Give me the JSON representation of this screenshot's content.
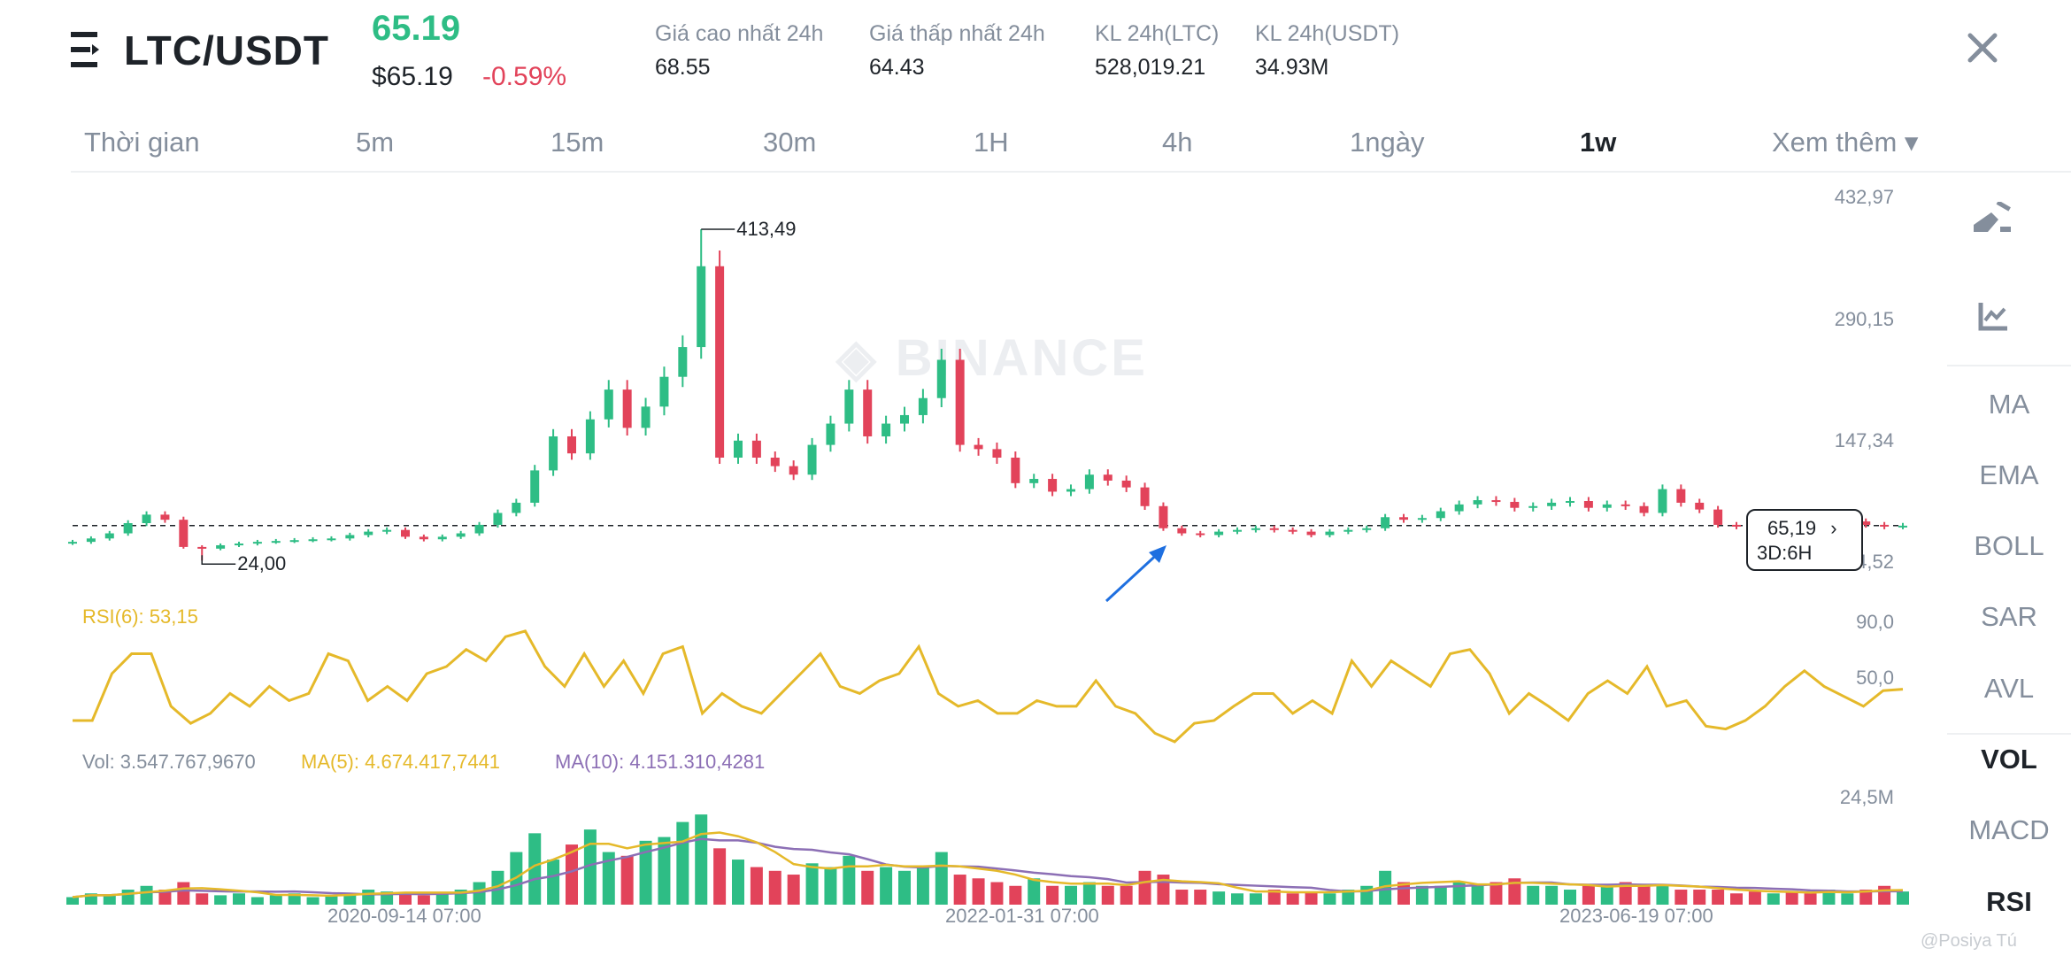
{
  "header": {
    "pair": "LTC/USDT",
    "last_price": "65.19",
    "usd_price": "$65.19",
    "change": "-0.59%",
    "stats": [
      {
        "label": "Giá cao nhất 24h",
        "value": "68.55"
      },
      {
        "label": "Giá thấp nhất 24h",
        "value": "64.43"
      },
      {
        "label": "KL 24h(LTC)",
        "value": "528,019.21"
      },
      {
        "label": "KL 24h(USDT)",
        "value": "34.93M"
      }
    ],
    "close_icon": "close-icon"
  },
  "tabs": [
    {
      "label": "Thời gian"
    },
    {
      "label": "5m"
    },
    {
      "label": "15m"
    },
    {
      "label": "30m"
    },
    {
      "label": "1H"
    },
    {
      "label": "4h"
    },
    {
      "label": "1ngày"
    },
    {
      "label": "1w",
      "active": true
    },
    {
      "label": "Xem thêm ▾"
    }
  ],
  "toolbar": {
    "items": [
      "MA",
      "EMA",
      "BOLL",
      "SAR",
      "AVL",
      "VOL",
      "MACD",
      "RSI"
    ],
    "active": [
      "VOL",
      "RSI"
    ],
    "icons": [
      "draw-icon",
      "indicator-chart-icon"
    ]
  },
  "watermark": "BINANCE",
  "credit": "@Posiya Tú",
  "colors": {
    "up": "#2ebd85",
    "down": "#e2435a",
    "rsi": "#e5b92a",
    "ma5": "#e5b92a",
    "ma10": "#8c6fb5",
    "arrow": "#1e6fe0"
  },
  "chart_data": {
    "type": "candlestick",
    "interval": "1w",
    "price_axis": {
      "ticks": [
        "432,97",
        "290,15",
        "147,34",
        "4,52"
      ],
      "range": [
        4.52,
        432.97
      ]
    },
    "rsi_axis": {
      "ticks": [
        "90,0",
        "50,0"
      ]
    },
    "vol_axis": {
      "ticks": [
        "24,5M"
      ]
    },
    "x_ticks": [
      "2020-09-14 07:00",
      "2022-01-31 07:00",
      "2023-06-19 07:00"
    ],
    "current_price": {
      "value": "65,19",
      "countdown": "3D:6H"
    },
    "max_label": "413,49",
    "max_value": 413.49,
    "min_label": "24,00",
    "min_value": 24.0,
    "closes": [
      46,
      50,
      56,
      68,
      78,
      72,
      40,
      38,
      42,
      44,
      46,
      47,
      48,
      49,
      50,
      54,
      58,
      60,
      52,
      49,
      52,
      56,
      66,
      80,
      92,
      130,
      170,
      150,
      190,
      225,
      180,
      205,
      240,
      275,
      370,
      145,
      165,
      145,
      135,
      125,
      160,
      185,
      225,
      170,
      185,
      195,
      215,
      260,
      160,
      155,
      145,
      115,
      120,
      105,
      108,
      125,
      118,
      110,
      88,
      62,
      56,
      54,
      58,
      60,
      62,
      60,
      58,
      54,
      58,
      60,
      62,
      75,
      72,
      74,
      82,
      90,
      95,
      93,
      86,
      88,
      92,
      94,
      86,
      90,
      88,
      80,
      108,
      92,
      84,
      66,
      64,
      62,
      70,
      66,
      64,
      66,
      70,
      66,
      64,
      65
    ],
    "rsi": {
      "label": "RSI(6): 53,15",
      "values": [
        31,
        31,
        64,
        78,
        78,
        41,
        29,
        36,
        50,
        41,
        55,
        45,
        50,
        78,
        73,
        45,
        55,
        45,
        64,
        69,
        81,
        73,
        90,
        94,
        69,
        55,
        78,
        55,
        73,
        50,
        78,
        83,
        36,
        50,
        41,
        36,
        50,
        64,
        78,
        55,
        50,
        59,
        64,
        83,
        50,
        41,
        45,
        36,
        36,
        45,
        41,
        41,
        59,
        41,
        36,
        22,
        16,
        29,
        31,
        41,
        50,
        50,
        36,
        45,
        36,
        73,
        55,
        73,
        64,
        55,
        78,
        81,
        64,
        36,
        50,
        41,
        31,
        50,
        59,
        50,
        69,
        41,
        45,
        27,
        25,
        31,
        41,
        55,
        66,
        55,
        48,
        41,
        52,
        53
      ]
    },
    "volume": {
      "vol_label": "Vol: 3.547.767,9670",
      "ma5_label": "MA(5): 4.674.417,7441",
      "ma10_label": "MA(10): 4.151.310,4281",
      "values_m": [
        2,
        3,
        2.5,
        4,
        5,
        4,
        6,
        3,
        2.5,
        3,
        2,
        2.5,
        3,
        2,
        2.5,
        3,
        4,
        3.5,
        3,
        2.5,
        3,
        4,
        6,
        9,
        14,
        19,
        12,
        16,
        20,
        14,
        13,
        17,
        18,
        22,
        24,
        15,
        12,
        10,
        9,
        8,
        11,
        10,
        13,
        9,
        10,
        9,
        10,
        14,
        8,
        7,
        6,
        5,
        7,
        5,
        5,
        6,
        5,
        5,
        9,
        8,
        4,
        4,
        3.5,
        3,
        3,
        4,
        3,
        3.5,
        3,
        4,
        5,
        9,
        6,
        5,
        5,
        6,
        5,
        6,
        7,
        5,
        5,
        4,
        5,
        5,
        6,
        5,
        5,
        4,
        4,
        4,
        3,
        3.5,
        3,
        3.5,
        3,
        4,
        3,
        4,
        5,
        3.5
      ]
    }
  }
}
